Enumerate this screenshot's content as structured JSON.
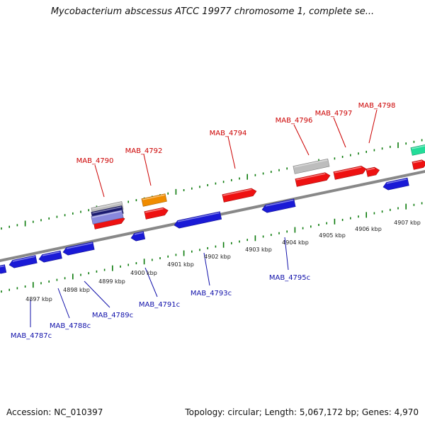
{
  "title": "Mycobacterium abscessus ATCC 19977 chromosome 1, complete se...",
  "footer": {
    "accession": "Accession: NC_010397",
    "summary": "Topology: circular; Length: 5,067,172 bp; Genes: 4,970"
  },
  "colors": {
    "plus_label": "#cc0000",
    "minus_label": "#1010aa",
    "plus_gene": "#ee1111",
    "minus_gene": "#1a1ad6",
    "rna_orange": "#f08c00",
    "pseudo_gray": "#bdbdbd",
    "navy": "#1a1a70",
    "lavender": "#8888dd",
    "green": "#22dd99",
    "axis": "#888888",
    "ticks": "#0a7a0a"
  },
  "ruler": [
    {
      "label": "4897 kbp"
    },
    {
      "label": "4898 kbp"
    },
    {
      "label": "4899 kbp"
    },
    {
      "label": "4900 kbp"
    },
    {
      "label": "4901 kbp"
    },
    {
      "label": "4902 kbp"
    },
    {
      "label": "4903 kbp"
    },
    {
      "label": "4904 kbp"
    },
    {
      "label": "4905 kbp"
    },
    {
      "label": "4906 kbp"
    },
    {
      "label": "4907 kbp"
    }
  ],
  "plus_labels": [
    {
      "label": "MAB_4790"
    },
    {
      "label": "MAB_4792"
    },
    {
      "label": "MAB_4794"
    },
    {
      "label": "MAB_4796"
    },
    {
      "label": "MAB_4797"
    },
    {
      "label": "MAB_4798"
    }
  ],
  "minus_labels": [
    {
      "label": "MAB_4787c"
    },
    {
      "label": "MAB_4788c"
    },
    {
      "label": "MAB_4789c"
    },
    {
      "label": "MAB_4791c"
    },
    {
      "label": "MAB_4793c"
    },
    {
      "label": "MAB_4795c"
    }
  ]
}
